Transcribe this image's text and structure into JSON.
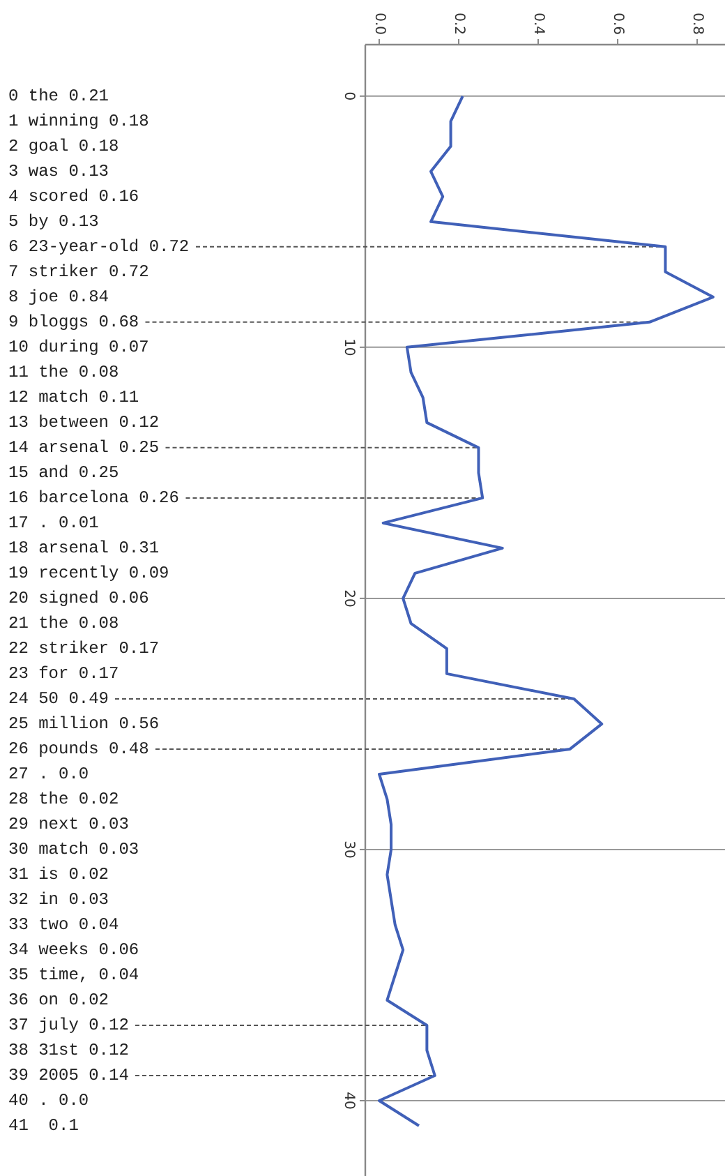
{
  "chart_data": {
    "type": "line",
    "orientation": "horizontal",
    "x": [
      0,
      1,
      2,
      3,
      4,
      5,
      6,
      7,
      8,
      9,
      10,
      11,
      12,
      13,
      14,
      15,
      16,
      17,
      18,
      19,
      20,
      21,
      22,
      23,
      24,
      25,
      26,
      27,
      28,
      29,
      30,
      31,
      32,
      33,
      34,
      35,
      36,
      37,
      38,
      39,
      40,
      41
    ],
    "series": [
      {
        "color": "#4060b8",
        "values": [
          0.21,
          0.18,
          0.18,
          0.13,
          0.16,
          0.13,
          0.72,
          0.72,
          0.84,
          0.68,
          0.07,
          0.08,
          0.11,
          0.12,
          0.25,
          0.25,
          0.26,
          0.01,
          0.31,
          0.09,
          0.06,
          0.08,
          0.17,
          0.17,
          0.49,
          0.56,
          0.48,
          0.0,
          0.02,
          0.03,
          0.03,
          0.02,
          0.03,
          0.04,
          0.06,
          0.04,
          0.02,
          0.12,
          0.12,
          0.14,
          0.0,
          0.1
        ]
      }
    ],
    "xlim": [
      -0.035,
      0.87
    ],
    "xticks": [
      {
        "value": 0,
        "label": "0.0"
      },
      {
        "value": 0.2,
        "label": "0.2"
      },
      {
        "value": 0.4,
        "label": "0.4"
      },
      {
        "value": 0.6,
        "label": "0.6"
      },
      {
        "value": 0.8,
        "label": "0.8"
      }
    ],
    "ylim": [
      43,
      -2.05
    ],
    "yticks": [
      0,
      10,
      20,
      30,
      40
    ],
    "grid": "y",
    "marker": "none",
    "line_style": "solid",
    "annotations": [
      "0 the 0.21",
      "1 winning 0.18",
      "2 goal 0.18",
      "3 was 0.13",
      "4 scored 0.16",
      "5 by 0.13",
      "6 23-year-old 0.72",
      "7 striker 0.72",
      "8 joe 0.84",
      "9 bloggs 0.68",
      "10 during 0.07",
      "11 the 0.08",
      "12 match 0.11",
      "13 between 0.12",
      "14 arsenal 0.25",
      "15 and 0.25",
      "16 barcelona 0.26",
      "17 . 0.01",
      "18 arsenal 0.31",
      "19 recently 0.09",
      "20 signed 0.06",
      "21 the 0.08",
      "22 striker 0.17",
      "23 for 0.17",
      "24 50 0.49",
      "25 million 0.56",
      "26 pounds 0.48",
      "27 . 0.0",
      "28 the 0.02",
      "29 next 0.03",
      "30 match 0.03",
      "31 is 0.02",
      "32 in 0.03",
      "33 two 0.04",
      "34 weeks 0.06",
      "35 time, 0.04",
      "36 on 0.02",
      "37 july 0.12",
      "38 31st 0.12",
      "39 2005 0.14",
      "40 . 0.0",
      "41  0.1"
    ],
    "ref_lines": [
      {
        "axis": "y",
        "value": 6,
        "line_style": "dashed",
        "color": "#555555"
      },
      {
        "axis": "y",
        "value": 9,
        "line_style": "dashed",
        "color": "#555555"
      },
      {
        "axis": "y",
        "value": 14,
        "line_style": "dashed",
        "color": "#555555"
      },
      {
        "axis": "y",
        "value": 16,
        "line_style": "dashed",
        "color": "#555555"
      },
      {
        "axis": "y",
        "value": 24,
        "line_style": "dashed",
        "color": "#555555"
      },
      {
        "axis": "y",
        "value": 26,
        "line_style": "dashed",
        "color": "#555555"
      },
      {
        "axis": "y",
        "value": 37,
        "line_style": "dashed",
        "color": "#555555"
      },
      {
        "axis": "y",
        "value": 39,
        "line_style": "dashed",
        "color": "#555555"
      }
    ]
  }
}
